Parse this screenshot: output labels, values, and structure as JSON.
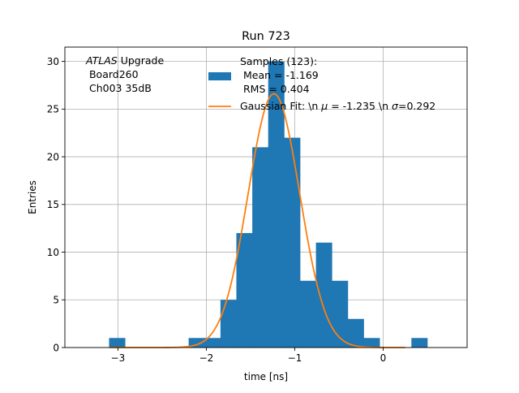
{
  "chart_data": {
    "type": "bar",
    "title": "Run 723",
    "xlabel": "time [ns]",
    "ylabel": "Entries",
    "xlim": [
      -3.6,
      0.95
    ],
    "ylim": [
      0,
      31.5
    ],
    "xticks": [
      -3,
      -2,
      -1,
      0
    ],
    "xtick_labels": [
      "−3",
      "−2",
      "−1",
      "0"
    ],
    "yticks": [
      0,
      5,
      10,
      15,
      20,
      25,
      30
    ],
    "ytick_labels": [
      "0",
      "5",
      "10",
      "15",
      "20",
      "25",
      "30"
    ],
    "grid": true,
    "bin_edges": [
      -3.1,
      -2.92,
      -2.74,
      -2.56,
      -2.38,
      -2.2,
      -2.02,
      -1.84,
      -1.66,
      -1.48,
      -1.3,
      -1.12,
      -0.94,
      -0.76,
      -0.58,
      -0.4,
      -0.22,
      -0.04,
      0.14,
      0.32,
      0.5
    ],
    "counts": [
      1,
      0,
      0,
      0,
      0,
      1,
      1,
      5,
      12,
      21,
      30,
      22,
      7,
      11,
      7,
      3,
      1,
      0,
      0,
      1
    ],
    "histogram_color": "#1f77b4",
    "fit": {
      "mu": -1.235,
      "sigma": 0.292,
      "amplitude": 26.6,
      "x_range": [
        -3.1,
        0.25
      ],
      "color": "#ff7f0e"
    },
    "annotation": {
      "line1_italic": "ATLAS",
      "line1_rest": " Upgrade",
      "line2": " Board260",
      "line3": " Ch003 35dB"
    },
    "legend": {
      "placement": "top-right",
      "hist_label_lines": [
        "Samples (123):",
        " Mean = -1.169",
        " RMS = 0.404"
      ],
      "fit_label_prefix": "Gaussian Fit: \\n ",
      "fit_label_mu_symbol": "μ",
      "fit_label_middle": " = -1.235 \\n ",
      "fit_label_sigma_symbol": "σ",
      "fit_label_suffix": "=0.292"
    }
  }
}
